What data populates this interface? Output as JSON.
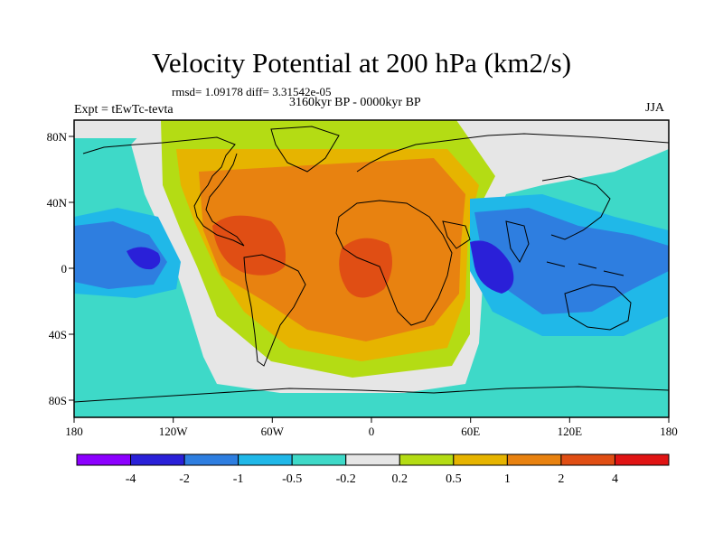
{
  "title": "Velocity Potential at 200 hPa (km2/s)",
  "stats": "rmsd= 1.09178 diff= 3.31542e-05",
  "period": "3160kyr BP - 0000kyr BP",
  "experiment": "Expt = tEwTc-tevta",
  "season": "JJA",
  "map": {
    "projection": "cylindrical equidistant",
    "lon_range": [
      -180,
      180
    ],
    "lat_range": [
      -90,
      90
    ],
    "coastlines": true,
    "x_ticks": [
      "180",
      "120W",
      "60W",
      "0",
      "60E",
      "120E",
      "180"
    ],
    "y_ticks": [
      "80N",
      "40N",
      "0",
      "40S",
      "80S"
    ]
  },
  "colorbar": {
    "labels": [
      "-4",
      "-2",
      "-1",
      "-0.5",
      "-0.2",
      "0.2",
      "0.5",
      "1",
      "2",
      "4"
    ],
    "colors": [
      "#8c00ff",
      "#2a20d8",
      "#2e7ee0",
      "#20b8e8",
      "#3ed9c8",
      "#e6e6e6",
      "#b4dc14",
      "#e6b400",
      "#e88210",
      "#e04e14",
      "#e01414"
    ]
  }
}
